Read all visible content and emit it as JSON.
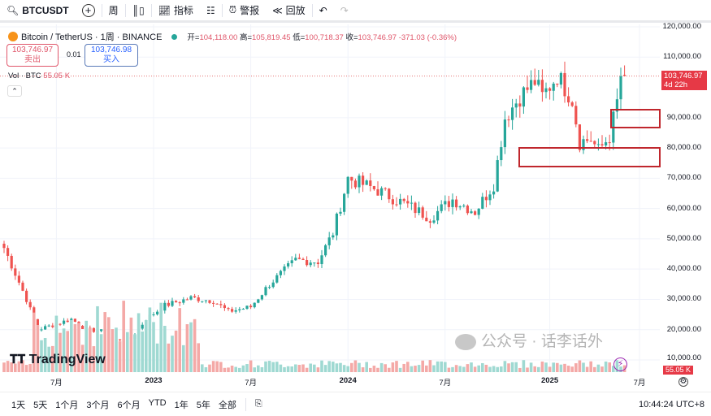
{
  "toolbar": {
    "symbol": "BTCUSDT",
    "interval": "周",
    "indicators": "指标",
    "alert": "警报",
    "replay": "回放"
  },
  "legend": {
    "name": "Bitcoin / TetherUS · 1周 · BINANCE",
    "open_lbl": "开=",
    "open": "104,118.00",
    "high_lbl": "高=",
    "high": "105,819.45",
    "low_lbl": "低=",
    "low": "100,718.37",
    "close_lbl": "收=",
    "close": "103,746.97",
    "change": "-371.03 (-0.36%)"
  },
  "trade": {
    "sell_price": "103,746.97",
    "sell_label": "卖出",
    "spread": "0.01",
    "buy_price": "103,746.98",
    "buy_label": "买入"
  },
  "volume": {
    "label": "Vol · BTC",
    "value": "55.05 K"
  },
  "price_tag": {
    "price": "103,746.97",
    "countdown": "4d 22h"
  },
  "logo": "TradingView",
  "watermark": "公众号 · 话李话外",
  "bottom": {
    "ranges": [
      "1天",
      "5天",
      "1个月",
      "3个月",
      "6个月",
      "YTD",
      "1年",
      "5年",
      "全部"
    ],
    "time": "10:44:24 UTC+8"
  },
  "colors": {
    "up": "#26a69a",
    "down": "#ef5350",
    "box": "#c0272d",
    "vol_up": "#9fd9d2",
    "vol_down": "#f4a9a7"
  },
  "chart_data": {
    "type": "candlestick",
    "interval": "1W",
    "yticks": [
      "120,000.00",
      "110,000.00",
      "90,000.00",
      "80,000.00",
      "70,000.00",
      "60,000.00",
      "50,000.00",
      "40,000.00",
      "30,000.00",
      "20,000.00",
      "10,000.00"
    ],
    "ytick_values": [
      120000,
      110000,
      90000,
      80000,
      70000,
      60000,
      50000,
      40000,
      30000,
      20000,
      10000
    ],
    "ylim": [
      10000,
      120000
    ],
    "xticks": [
      "7月",
      "2023",
      "7月",
      "2024",
      "7月",
      "2025",
      "7月"
    ],
    "xtick_weeks": [
      14,
      40,
      66,
      92,
      118,
      146,
      170
    ],
    "close_keypoints": [
      [
        0,
        47000
      ],
      [
        6,
        30000
      ],
      [
        9,
        20000
      ],
      [
        13,
        21500
      ],
      [
        18,
        23500
      ],
      [
        22,
        20000
      ],
      [
        26,
        19500
      ],
      [
        29,
        16500
      ],
      [
        34,
        17000
      ],
      [
        38,
        23500
      ],
      [
        43,
        28000
      ],
      [
        50,
        30500
      ],
      [
        56,
        29500
      ],
      [
        60,
        26000
      ],
      [
        66,
        27500
      ],
      [
        71,
        35000
      ],
      [
        78,
        43000
      ],
      [
        84,
        42500
      ],
      [
        88,
        52000
      ],
      [
        92,
        70000
      ],
      [
        100,
        66000
      ],
      [
        108,
        61000
      ],
      [
        114,
        57000
      ],
      [
        120,
        63000
      ],
      [
        126,
        59000
      ],
      [
        131,
        68000
      ],
      [
        134,
        90000
      ],
      [
        138,
        97000
      ],
      [
        142,
        102000
      ],
      [
        144,
        97000
      ],
      [
        148,
        104000
      ],
      [
        152,
        96000
      ],
      [
        154,
        82000
      ],
      [
        157,
        83000
      ],
      [
        159,
        79000
      ],
      [
        162,
        84000
      ],
      [
        164,
        95000
      ],
      [
        165,
        103700
      ],
      [
        166,
        103747
      ]
    ],
    "last": {
      "open": 104118,
      "high": 105819.45,
      "low": 100718.37,
      "close": 103746.97
    },
    "zones": [
      {
        "from": 87000,
        "to": 93000,
        "start_week": 162
      },
      {
        "from": 74000,
        "to": 80500,
        "start_week": 137
      }
    ]
  }
}
